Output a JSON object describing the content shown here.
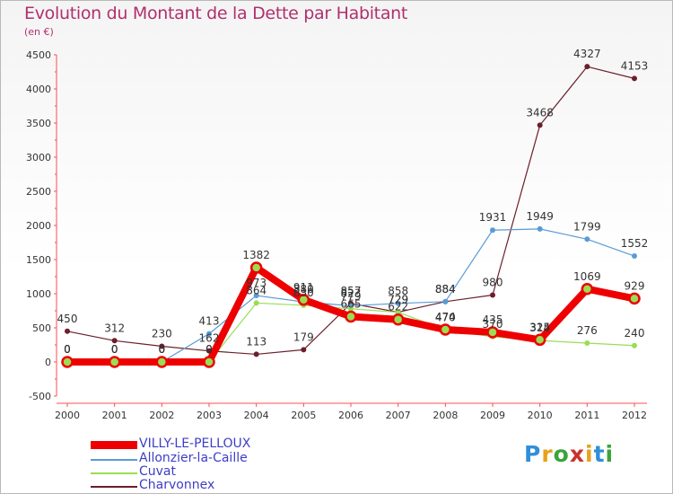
{
  "chart_data": {
    "type": "line",
    "title": "Evolution du Montant de la Dette par Habitant",
    "subtitle": "(en €)",
    "x": [
      "2000",
      "2001",
      "2002",
      "2003",
      "2004",
      "2005",
      "2006",
      "2007",
      "2008",
      "2009",
      "2010",
      "2011",
      "2012"
    ],
    "y_ticks": [
      "4500",
      "4000",
      "3500",
      "3000",
      "2500",
      "2000",
      "1500",
      "1000",
      "500",
      "0",
      "-500"
    ],
    "ylim": [
      -500,
      4500
    ],
    "grid": false,
    "legend_placement": "bottom-left",
    "series": [
      {
        "name": "VILLY-LE-PELLOUX",
        "color": "#ee0000",
        "values": [
          0,
          0,
          0,
          0,
          1382,
          911,
          665,
          622,
          474,
          435,
          325,
          1069,
          929
        ],
        "labels": [
          "0",
          "0",
          "0",
          "0",
          "1382",
          "911",
          "665",
          "622",
          "474",
          "435",
          "325",
          "1069",
          "929"
        ]
      },
      {
        "name": "Allonzier-la-Caille",
        "color": "#5b9bd5",
        "values": [
          0,
          0,
          0,
          413,
          973,
          880,
          823,
          858,
          884,
          1931,
          1949,
          1799,
          1552
        ],
        "labels": [
          "0",
          "0",
          "0",
          "413",
          "973",
          "880",
          "823",
          "858",
          "884",
          "1931",
          "1949",
          "1799",
          "1552"
        ]
      },
      {
        "name": "Cuvat",
        "color": "#99dd55",
        "values": [
          0,
          0,
          0,
          0,
          864,
          830,
          779,
          729,
          470,
          370,
          314,
          276,
          240
        ],
        "labels": [
          "0",
          "0",
          "0",
          "0",
          "864",
          "830",
          "779",
          "729",
          "470",
          "370",
          "314",
          "276",
          "240"
        ]
      },
      {
        "name": "Charvonnex",
        "color": "#6b1f2a",
        "values": [
          450,
          312,
          230,
          162,
          113,
          179,
          857,
          729,
          884,
          980,
          3468,
          4327,
          4153
        ],
        "labels": [
          "450",
          "312",
          "230",
          "162",
          "113",
          "179",
          "857",
          "729",
          "884",
          "980",
          "3468",
          "4327",
          "4153"
        ]
      }
    ]
  },
  "legend": [
    {
      "label": "VILLY-LE-PELLOUX",
      "color": "#ee0000"
    },
    {
      "label": "Allonzier-la-Caille",
      "color": "#5b9bd5"
    },
    {
      "label": "Cuvat",
      "color": "#99dd55"
    },
    {
      "label": "Charvonnex",
      "color": "#6b1f2a"
    }
  ],
  "brand": {
    "letters": [
      "P",
      "r",
      "o",
      "x",
      "i",
      "t",
      "i"
    ],
    "colors": [
      "#2f8fd8",
      "#e7a21a",
      "#3aa43a",
      "#c8332b",
      "#e7a21a",
      "#2f8fd8",
      "#3aa43a"
    ]
  }
}
